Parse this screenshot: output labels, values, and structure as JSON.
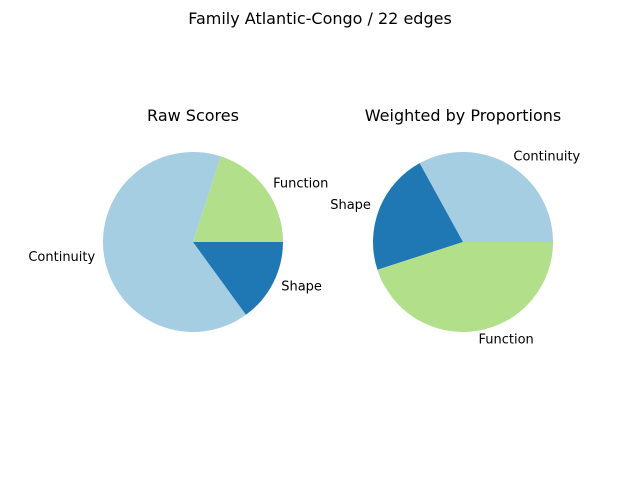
{
  "figure": {
    "title": "Family Atlantic-Congo / 22 edges"
  },
  "chart_data": [
    {
      "type": "pie",
      "title": "Raw Scores",
      "labels": [
        "Function",
        "Continuity",
        "Shape"
      ],
      "values": [
        0.2,
        0.65,
        0.15
      ],
      "colors": [
        "#b2df8a",
        "#a6cee3",
        "#1f78b4"
      ],
      "start_angle_deg": 0,
      "direction": "counterclockwise"
    },
    {
      "type": "pie",
      "title": "Weighted by Proportions",
      "labels": [
        "Continuity",
        "Shape",
        "Function"
      ],
      "values": [
        0.33,
        0.22,
        0.45
      ],
      "colors": [
        "#a6cee3",
        "#1f78b4",
        "#b2df8a"
      ],
      "start_angle_deg": 0,
      "direction": "counterclockwise"
    }
  ]
}
